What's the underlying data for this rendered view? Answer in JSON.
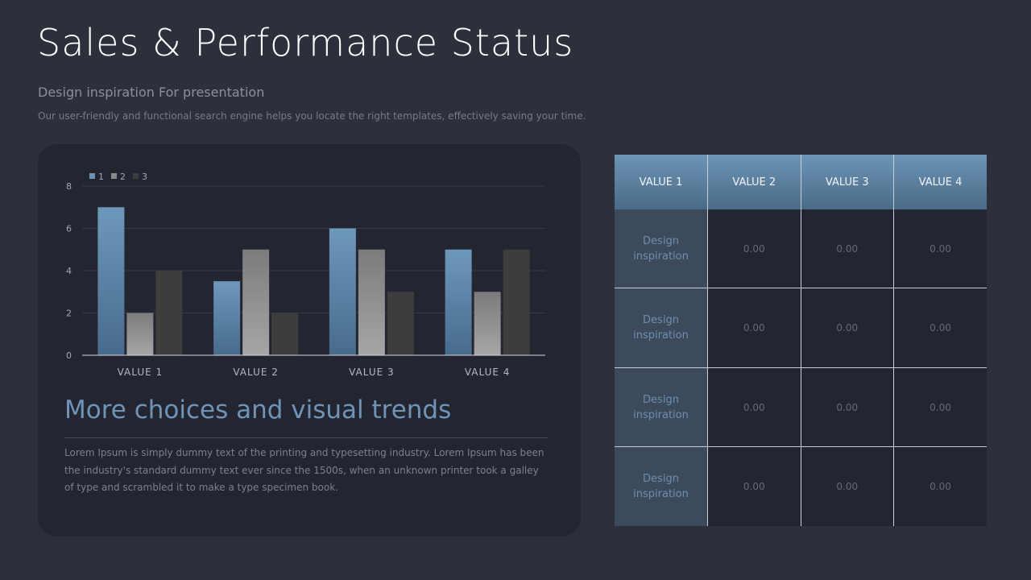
{
  "title": "Sales & Performance Status",
  "subtitle": "Design inspiration For presentation",
  "description": "Our user-friendly and functional search engine helps you locate the right templates, effectively saving your time.",
  "panel": {
    "heading": "More choices and visual trends",
    "body": "Lorem Ipsum is simply dummy text of the printing and typesetting industry. Lorem Ipsum has been the industry's standard dummy text ever since the 1500s, when an unknown printer took a galley of type and scrambled it to make a type specimen book."
  },
  "chart_data": {
    "type": "bar",
    "categories": [
      "VALUE 1",
      "VALUE 2",
      "VALUE 3",
      "VALUE 4"
    ],
    "series": [
      {
        "name": "1",
        "values": [
          7,
          3.5,
          6,
          5
        ],
        "color": "#6a93b6"
      },
      {
        "name": "2",
        "values": [
          2,
          5,
          5,
          3
        ],
        "color": "#8a8a8a"
      },
      {
        "name": "3",
        "values": [
          4,
          2,
          3,
          5
        ],
        "color": "#3e3e3e"
      }
    ],
    "ylim": [
      0,
      8
    ],
    "yticks": [
      0,
      2,
      4,
      6,
      8
    ],
    "grid": true,
    "legend": "top-left"
  },
  "table": {
    "headers": [
      "VALUE 1",
      "VALUE 2",
      "VALUE 3",
      "VALUE 4"
    ],
    "rows": [
      {
        "label": "Design inspiration",
        "values": [
          "0.00",
          "0.00",
          "0.00"
        ]
      },
      {
        "label": "Design inspiration",
        "values": [
          "0.00",
          "0.00",
          "0.00"
        ]
      },
      {
        "label": "Design inspiration",
        "values": [
          "0.00",
          "0.00",
          "0.00"
        ]
      },
      {
        "label": "Design inspiration",
        "values": [
          "0.00",
          "0.00",
          "0.00"
        ]
      }
    ]
  }
}
